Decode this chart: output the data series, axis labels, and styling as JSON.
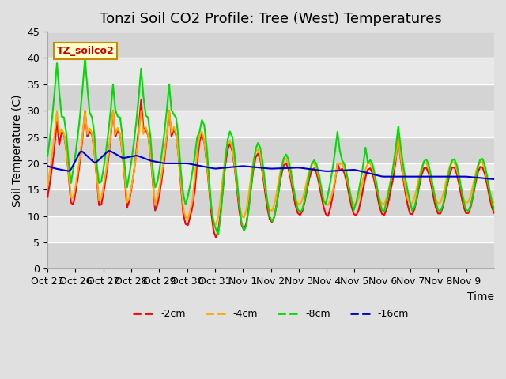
{
  "title": "Tonzi Soil CO2 Profile: Tree (West) Temperatures",
  "xlabel": "Time",
  "ylabel": "Soil Temperature (C)",
  "ylim": [
    0,
    45
  ],
  "yticks": [
    0,
    5,
    10,
    15,
    20,
    25,
    30,
    35,
    40,
    45
  ],
  "xtick_labels": [
    "Oct 25",
    "Oct 26",
    "Oct 27",
    "Oct 28",
    "Oct 29",
    "Oct 30",
    "Oct 31",
    "Nov 1",
    "Nov 2",
    "Nov 3",
    "Nov 4",
    "Nov 5",
    "Nov 6",
    "Nov 7",
    "Nov 8",
    "Nov 9"
  ],
  "legend_label": "TZ_soilco2",
  "series_labels": [
    "-2cm",
    "-4cm",
    "-8cm",
    "-16cm"
  ],
  "series_colors": [
    "#ff0000",
    "#ffaa00",
    "#00dd00",
    "#0000cc"
  ],
  "line_width": 1.5,
  "bg_color": "#e0e0e0",
  "plot_bg": "#ebebeb",
  "title_fontsize": 13,
  "label_fontsize": 10,
  "tick_fontsize": 9
}
